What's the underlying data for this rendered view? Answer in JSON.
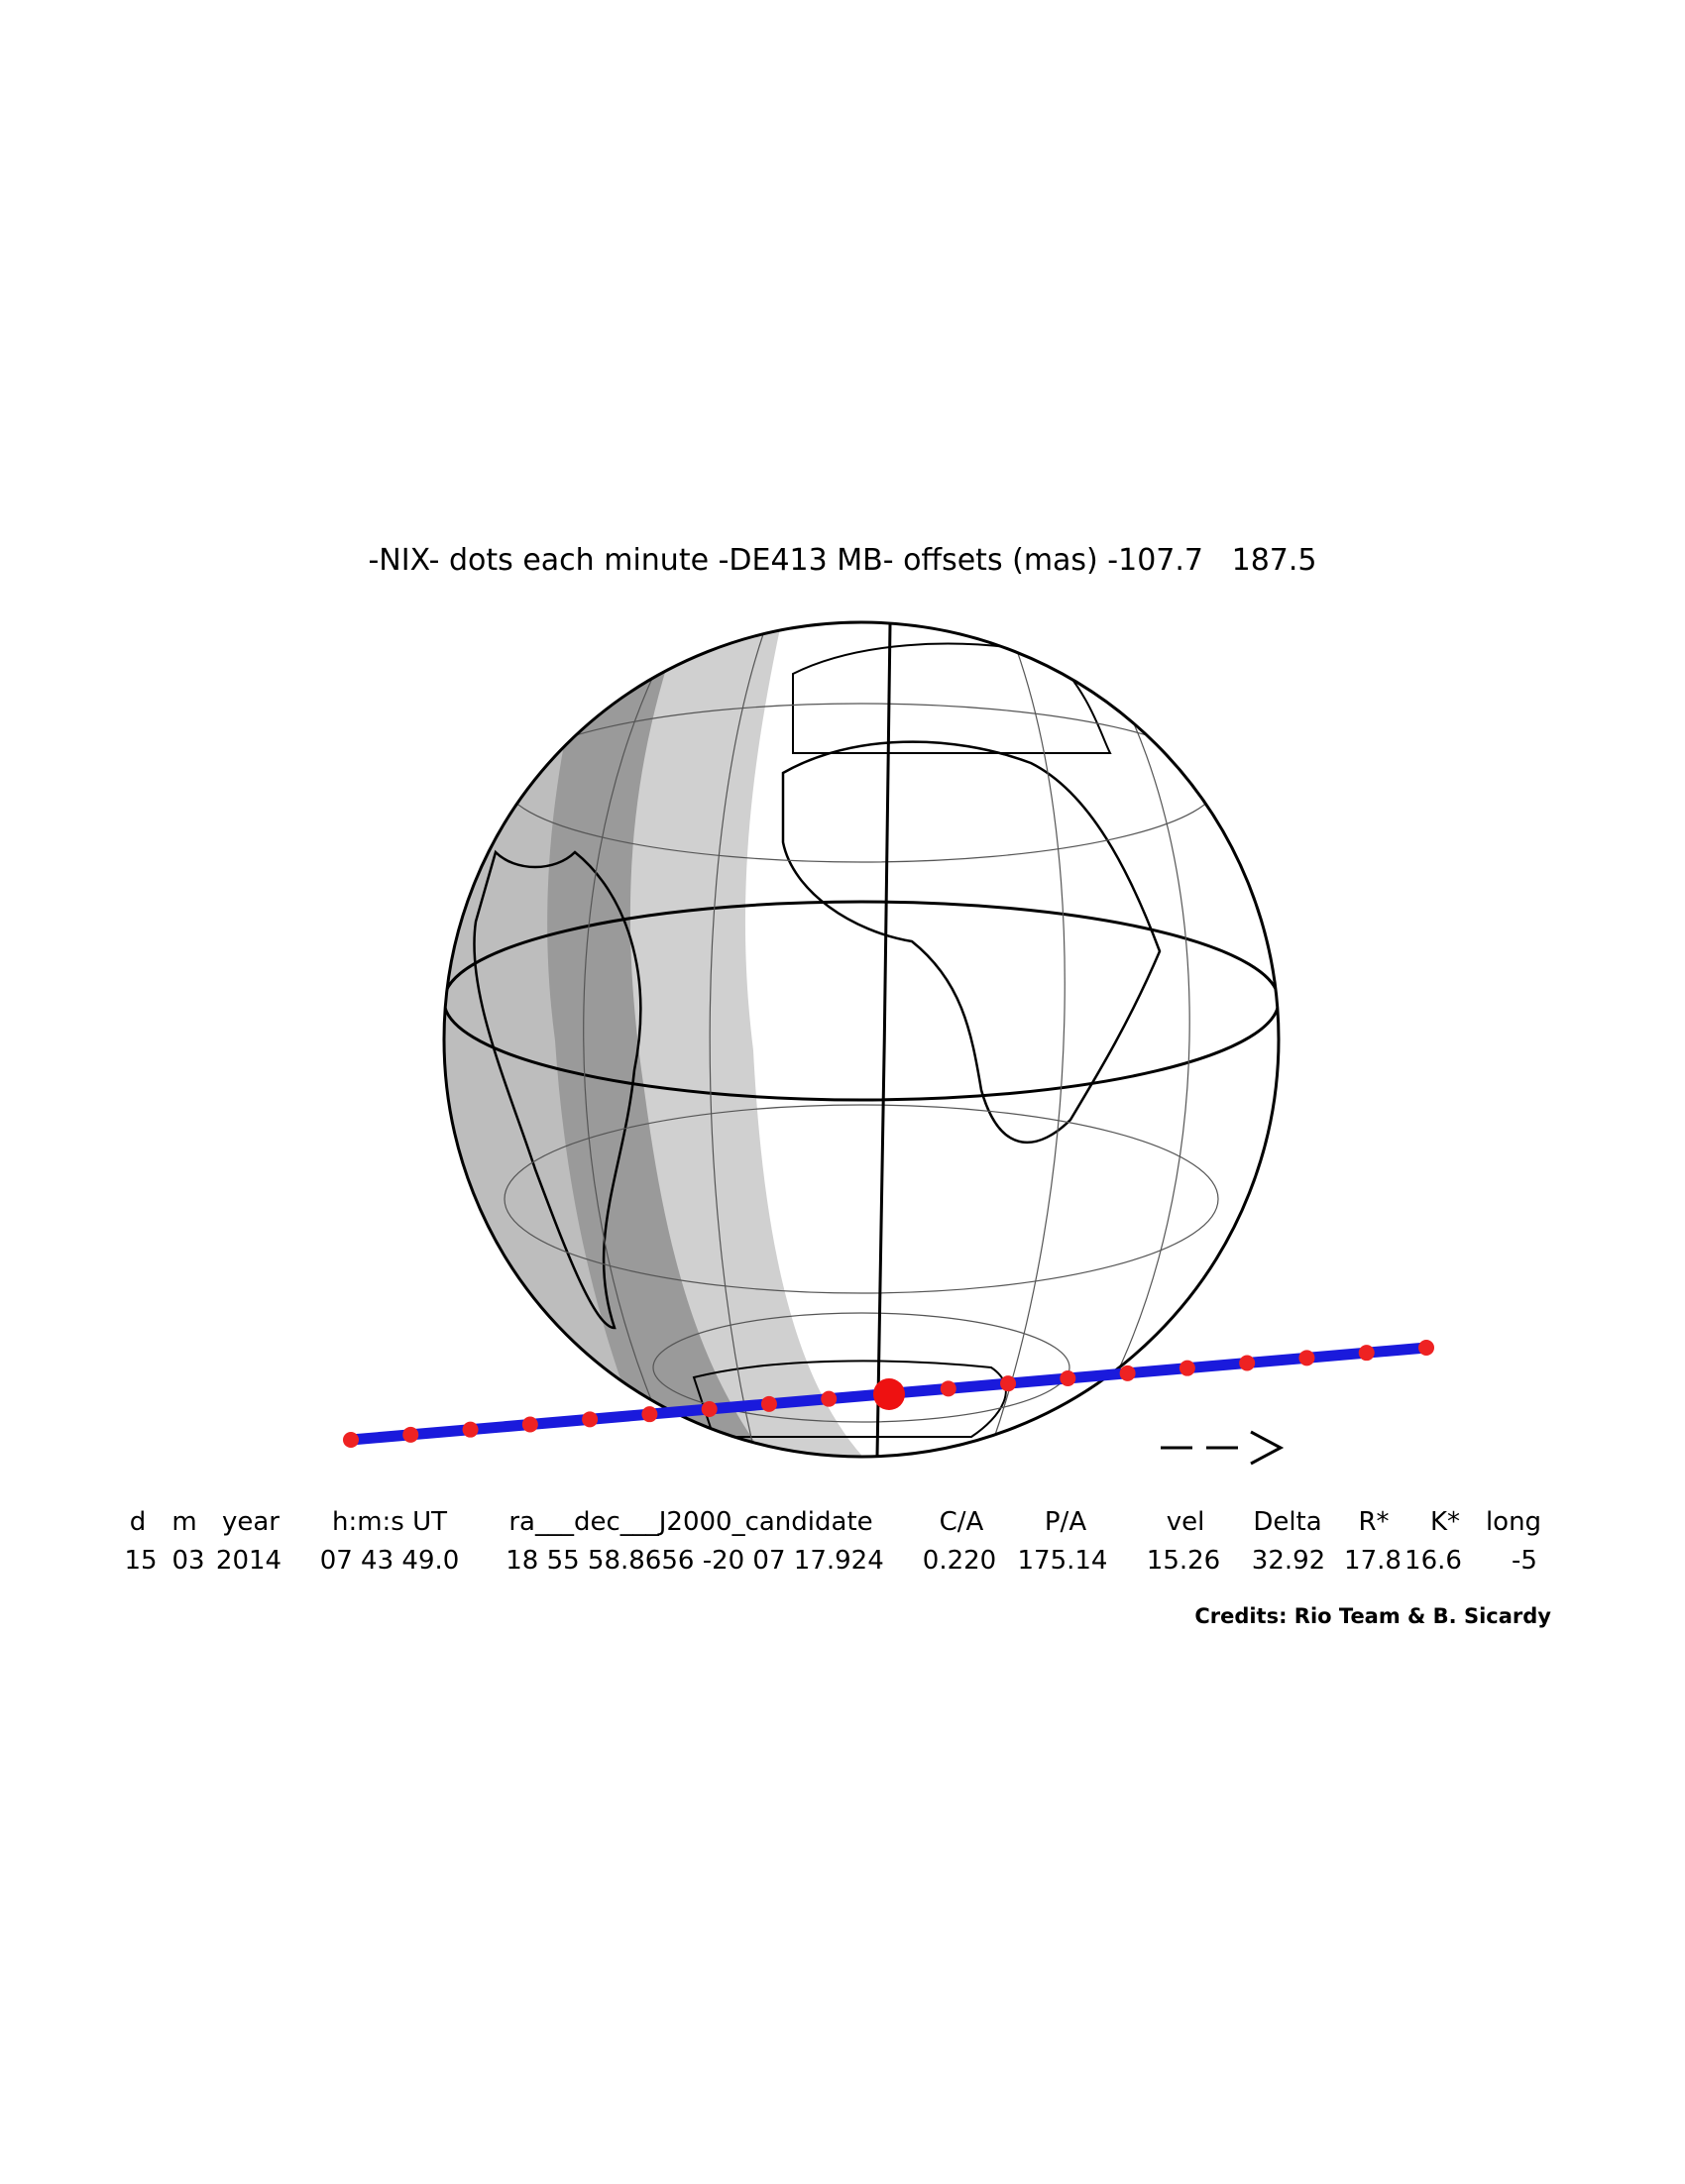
{
  "header": {
    "title": "-NIX- dots each minute -DE413 MB- offsets (mas) -107.7   187.5"
  },
  "table": {
    "header": [
      "d",
      "m",
      "year",
      "h:m:s UT",
      "ra___dec___J2000_candidate",
      "C/A",
      "P/A",
      "vel",
      "Delta",
      "R*",
      "K*",
      "long"
    ],
    "rows": [
      [
        "15",
        "03",
        "2014",
        "07 43 49.0",
        "18 55 58.8656 -20 07 17.924",
        "0.220",
        "175.14",
        "15.26",
        "32.92",
        "17.8",
        "16.6",
        "-5"
      ]
    ]
  },
  "footer": {
    "credits": "Credits: Rio Team & B. Sicardy"
  }
}
